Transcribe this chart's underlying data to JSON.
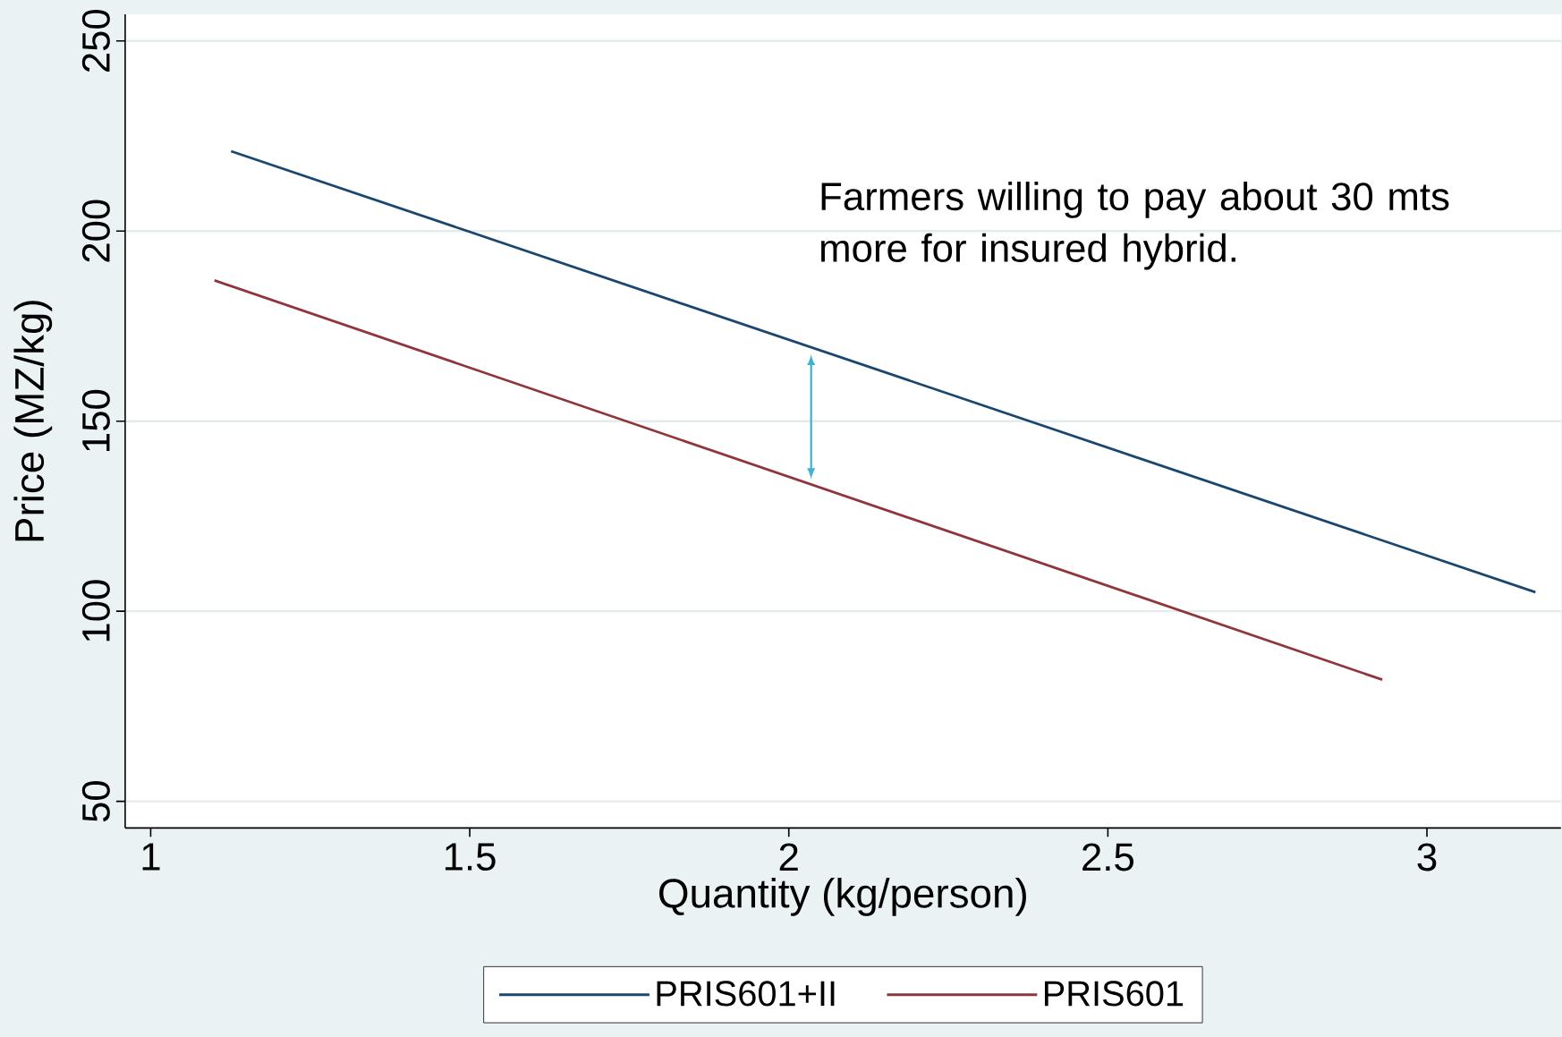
{
  "chart_data": {
    "type": "line",
    "xlabel": "Quantity (kg/person)",
    "ylabel": "Price (MZ/kg)",
    "series": [
      {
        "name": "PRIS601+II",
        "color": "#1a476f",
        "x": [
          1.126,
          3.17
        ],
        "values": [
          221,
          105
        ]
      },
      {
        "name": "PRIS601",
        "color": "#90353b",
        "x": [
          1.1,
          2.93
        ],
        "values": [
          187,
          82
        ]
      }
    ],
    "annotations": [
      {
        "text": "Farmers willing to pay about 30 mts more for insured hybrid.",
        "x": 2.035,
        "y": 169
      }
    ],
    "xlim": [
      0.96,
      3.21
    ],
    "ylim": [
      43,
      257
    ],
    "xticks": [
      1,
      1.5,
      2,
      2.5,
      3
    ],
    "yticks": [
      50,
      100,
      150,
      200,
      250
    ],
    "grid": "y",
    "legend": "bottom",
    "marker": "none",
    "line_style": "solid"
  }
}
